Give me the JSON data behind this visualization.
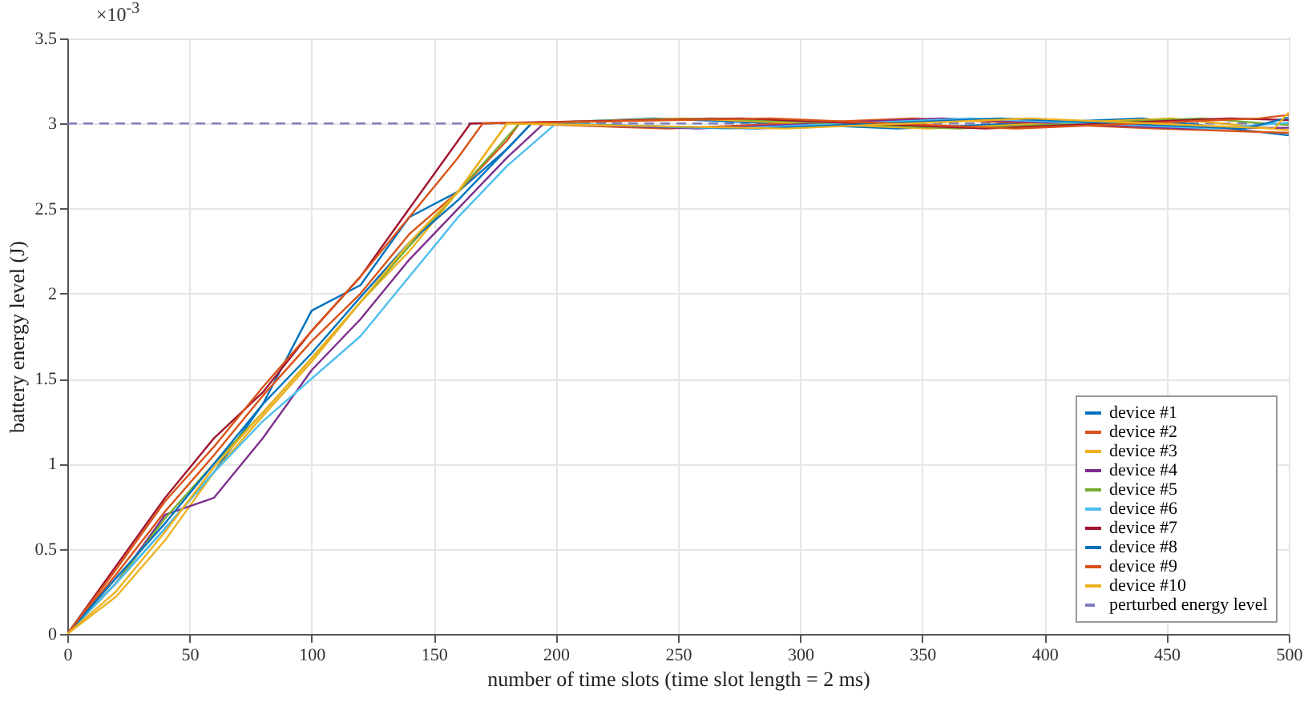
{
  "chart_data": {
    "type": "line",
    "xlabel": "number of time slots (time slot length = 2 ms)",
    "ylabel": "battery energy level (J)",
    "annotations": [
      "×10$^{-3}$"
    ],
    "xlim": [
      0,
      500
    ],
    "xticks": [
      0,
      50,
      100,
      150,
      200,
      250,
      300,
      350,
      400,
      450,
      500
    ],
    "ylim": [
      0,
      3.5
    ],
    "yticks": [
      0,
      0.5,
      1,
      1.5,
      2,
      2.5,
      3,
      3.5
    ],
    "grid": true,
    "legend": "bottom right",
    "marker": "none",
    "line_style": "solid",
    "series": [
      {
        "name": "device #1",
        "color": "#0072bd",
        "x": [
          0,
          20,
          40,
          60,
          80,
          100,
          120,
          140,
          160,
          180,
          190,
          240,
          340,
          440,
          500
        ],
        "values": [
          0,
          0.3,
          0.62,
          0.95,
          1.35,
          1.9,
          2.05,
          2.45,
          2.6,
          2.85,
          3,
          3.03,
          2.97,
          3.03,
          2.93
        ]
      },
      {
        "name": "device #2",
        "color": "#d95319",
        "x": [
          0,
          20,
          40,
          60,
          80,
          100,
          120,
          140,
          160,
          180,
          185,
          246,
          346,
          446,
          500
        ],
        "values": [
          0,
          0.35,
          0.72,
          1.05,
          1.4,
          1.72,
          2.0,
          2.35,
          2.6,
          2.9,
          3,
          2.97,
          3.03,
          2.97,
          2.945
        ]
      },
      {
        "name": "device #3",
        "color": "#edb120",
        "x": [
          0,
          20,
          40,
          60,
          80,
          100,
          120,
          140,
          160,
          180,
          252,
          352,
          452,
          500
        ],
        "values": [
          0,
          0.22,
          0.55,
          0.95,
          1.28,
          1.6,
          1.95,
          2.25,
          2.6,
          3,
          3.03,
          2.97,
          3.03,
          2.96
        ]
      },
      {
        "name": "device #4",
        "color": "#7e2f8e",
        "x": [
          0,
          20,
          40,
          60,
          80,
          100,
          120,
          140,
          160,
          180,
          195,
          258,
          358,
          458,
          500
        ],
        "values": [
          0,
          0.3,
          0.7,
          0.8,
          1.15,
          1.55,
          1.85,
          2.2,
          2.5,
          2.8,
          3,
          2.97,
          3.03,
          2.97,
          2.975
        ]
      },
      {
        "name": "device #5",
        "color": "#77ac30",
        "x": [
          0,
          20,
          40,
          60,
          80,
          100,
          120,
          140,
          160,
          180,
          185,
          264,
          364,
          464,
          500
        ],
        "values": [
          0,
          0.3,
          0.68,
          1.0,
          1.3,
          1.62,
          1.95,
          2.28,
          2.6,
          2.92,
          3,
          3.03,
          2.97,
          3.03,
          2.99
        ]
      },
      {
        "name": "device #6",
        "color": "#4dbeee",
        "x": [
          0,
          20,
          40,
          60,
          80,
          100,
          120,
          140,
          160,
          180,
          200,
          270,
          370,
          470,
          500
        ],
        "values": [
          0,
          0.3,
          0.62,
          0.95,
          1.25,
          1.5,
          1.75,
          2.1,
          2.45,
          2.75,
          3,
          2.97,
          3.03,
          2.97,
          3.005
        ]
      },
      {
        "name": "device #7",
        "color": "#a2142f",
        "x": [
          0,
          20,
          40,
          60,
          80,
          100,
          120,
          140,
          160,
          165,
          276,
          376,
          476,
          500
        ],
        "values": [
          0,
          0.4,
          0.8,
          1.15,
          1.42,
          1.78,
          2.1,
          2.5,
          2.9,
          3,
          3.03,
          2.97,
          3.03,
          3.02
        ]
      },
      {
        "name": "device #8",
        "color": "#0072bd",
        "x": [
          0,
          20,
          40,
          60,
          80,
          100,
          120,
          140,
          160,
          180,
          190,
          282,
          382,
          482,
          500
        ],
        "values": [
          0,
          0.33,
          0.65,
          1.0,
          1.35,
          1.65,
          1.98,
          2.3,
          2.55,
          2.85,
          3,
          2.97,
          3.03,
          2.97,
          3.035
        ]
      },
      {
        "name": "device #9",
        "color": "#d95319",
        "x": [
          0,
          20,
          40,
          60,
          80,
          100,
          120,
          140,
          160,
          170,
          288,
          388,
          488,
          500
        ],
        "values": [
          0,
          0.38,
          0.78,
          1.1,
          1.45,
          1.78,
          2.1,
          2.45,
          2.8,
          3,
          3.03,
          2.97,
          3.03,
          3.05
        ]
      },
      {
        "name": "device #10",
        "color": "#edb120",
        "x": [
          0,
          20,
          40,
          60,
          80,
          100,
          120,
          140,
          160,
          180,
          294,
          394,
          494,
          500
        ],
        "values": [
          0,
          0.25,
          0.6,
          0.98,
          1.3,
          1.62,
          1.95,
          2.3,
          2.6,
          3,
          2.97,
          3.03,
          2.97,
          3.065
        ]
      },
      {
        "name": "perturbed energy level",
        "color": "#7e7ebe",
        "line_style": "dashed",
        "x": [
          0,
          500
        ],
        "values": [
          3,
          3
        ]
      }
    ]
  }
}
